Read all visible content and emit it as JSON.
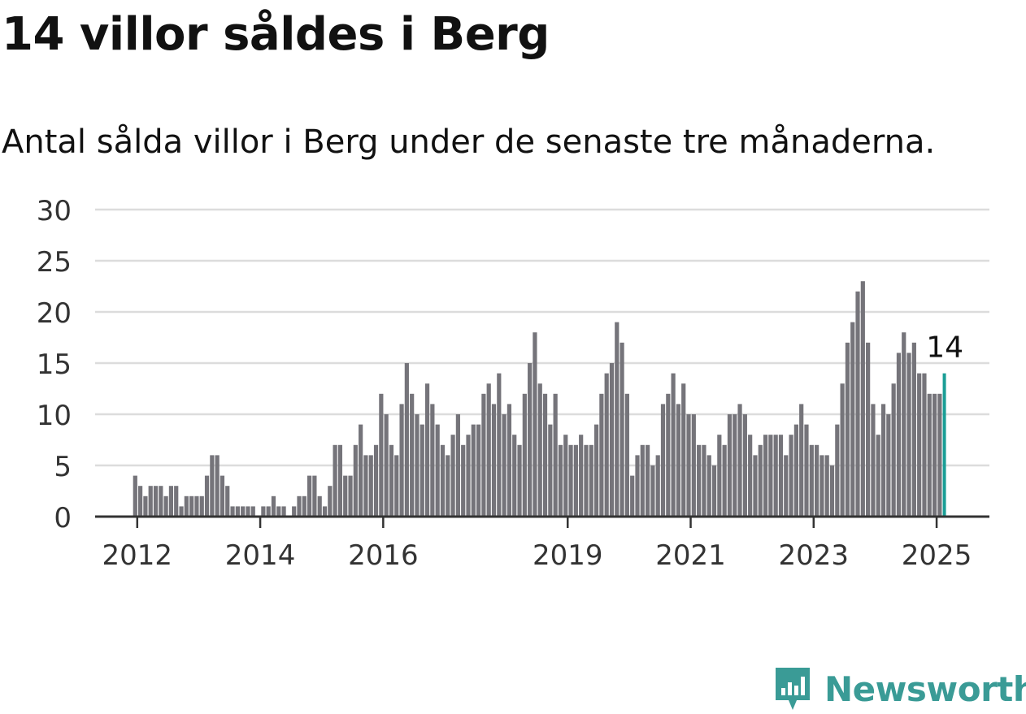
{
  "title": "14 villor såldes i Berg",
  "subtitle": "Antal sålda villor i Berg under de senaste tre månaderna.",
  "brand": {
    "name": "Newsworthy",
    "color": "#3a9b96",
    "icon": "newsworthy-chart-icon"
  },
  "colors": {
    "bar": "#75747a",
    "highlight": "#1a9e96",
    "grid": "#dcdcdc",
    "axis": "#333333"
  },
  "chart_data": {
    "type": "bar",
    "title": "14 villor såldes i Berg",
    "subtitle": "Antal sålda villor i Berg under de senaste tre månaderna.",
    "xlabel": "",
    "ylabel": "",
    "ylim": [
      0,
      30
    ],
    "yticks": [
      0,
      5,
      10,
      15,
      20,
      25,
      30
    ],
    "xtick_labels": [
      "2012",
      "2014",
      "2016",
      "2019",
      "2021",
      "2023",
      "2025"
    ],
    "grid": true,
    "start_month": "2012-01",
    "highlight": {
      "month": "2025-03",
      "value": 14,
      "label": "14"
    },
    "values": [
      4,
      3,
      2,
      3,
      3,
      3,
      2,
      3,
      3,
      1,
      2,
      2,
      2,
      2,
      4,
      6,
      6,
      4,
      3,
      1,
      1,
      1,
      1,
      1,
      0,
      1,
      1,
      2,
      1,
      1,
      0,
      1,
      2,
      2,
      4,
      4,
      2,
      1,
      3,
      7,
      7,
      4,
      4,
      7,
      9,
      6,
      6,
      7,
      12,
      10,
      7,
      6,
      11,
      15,
      12,
      10,
      9,
      13,
      11,
      9,
      7,
      6,
      8,
      10,
      7,
      8,
      9,
      9,
      12,
      13,
      11,
      14,
      10,
      11,
      8,
      7,
      12,
      15,
      18,
      13,
      12,
      9,
      12,
      7,
      8,
      7,
      7,
      8,
      7,
      7,
      9,
      12,
      14,
      15,
      19,
      17,
      12,
      4,
      6,
      7,
      7,
      5,
      6,
      11,
      12,
      14,
      11,
      13,
      10,
      10,
      7,
      7,
      6,
      5,
      8,
      7,
      10,
      10,
      11,
      10,
      8,
      6,
      7,
      8,
      8,
      8,
      8,
      6,
      8,
      9,
      11,
      9,
      7,
      7,
      6,
      6,
      5,
      9,
      13,
      17,
      19,
      22,
      23,
      17,
      11,
      8,
      11,
      10,
      13,
      16,
      18,
      16,
      17,
      14,
      14,
      12,
      12,
      12,
      14
    ]
  }
}
